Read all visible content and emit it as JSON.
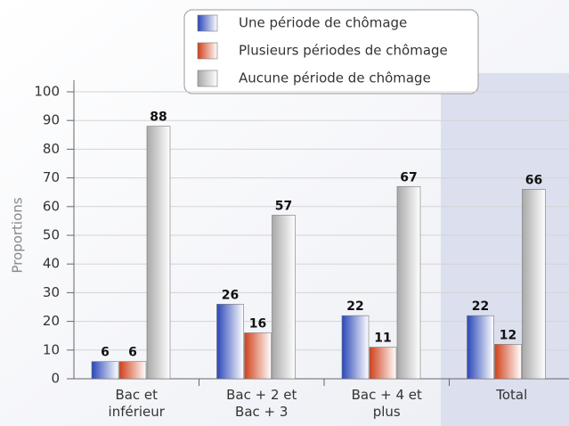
{
  "chart_data": {
    "type": "bar",
    "y_label": "Proportions",
    "categories": [
      "Bac et\ninférieur",
      "Bac + 2 et\nBac + 3",
      "Bac + 4 et\nplus",
      "Total"
    ],
    "series": [
      {
        "name": "Une période de chômage",
        "color": "#2a46b8",
        "values": [
          6,
          26,
          22,
          22
        ]
      },
      {
        "name": "Plusieurs périodes de chômage",
        "color": "#d0401a",
        "values": [
          6,
          16,
          11,
          12
        ]
      },
      {
        "name": "Aucune période de chômage",
        "color": "#a8a8a8",
        "values": [
          88,
          57,
          67,
          66
        ]
      }
    ],
    "ylim": [
      0,
      100
    ],
    "yticks": [
      0,
      10,
      20,
      30,
      40,
      50,
      60,
      70,
      80,
      90,
      100
    ],
    "grid": true
  }
}
